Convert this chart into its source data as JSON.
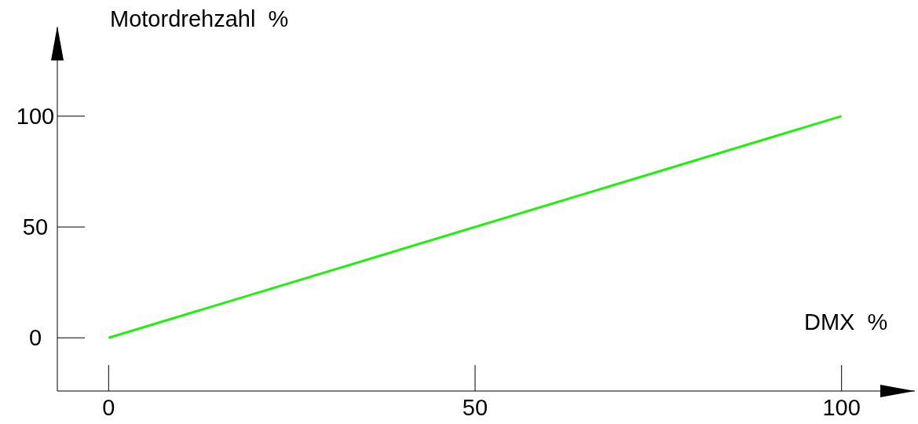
{
  "chart_data": {
    "type": "line",
    "xlabel": "DMX  %",
    "ylabel": "Motordrehzahl  %",
    "x": [
      0,
      100
    ],
    "series": [
      {
        "color": "#22ee11",
        "values": [
          0,
          100
        ]
      }
    ],
    "xlim": [
      -7,
      110
    ],
    "ylim": [
      -24,
      140
    ],
    "xticks": [
      0,
      50,
      100
    ],
    "yticks": [
      0,
      50,
      100
    ],
    "marker": "none",
    "line_style": "solid"
  }
}
